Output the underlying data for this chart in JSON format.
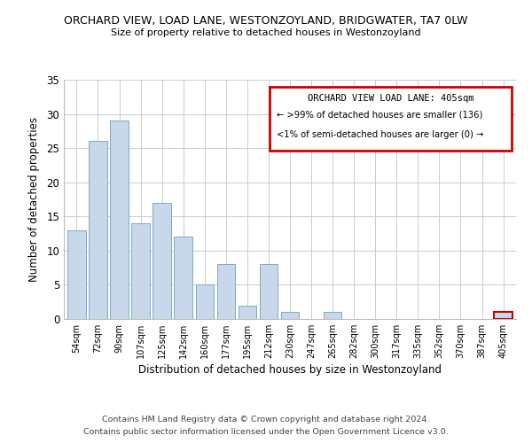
{
  "title": "ORCHARD VIEW, LOAD LANE, WESTONZOYLAND, BRIDGWATER, TA7 0LW",
  "subtitle": "Size of property relative to detached houses in Westonzoyland",
  "xlabel": "Distribution of detached houses by size in Westonzoyland",
  "ylabel": "Number of detached properties",
  "bin_labels": [
    "54sqm",
    "72sqm",
    "90sqm",
    "107sqm",
    "125sqm",
    "142sqm",
    "160sqm",
    "177sqm",
    "195sqm",
    "212sqm",
    "230sqm",
    "247sqm",
    "265sqm",
    "282sqm",
    "300sqm",
    "317sqm",
    "335sqm",
    "352sqm",
    "370sqm",
    "387sqm",
    "405sqm"
  ],
  "bar_heights": [
    13,
    26,
    29,
    14,
    17,
    12,
    5,
    8,
    2,
    8,
    1,
    0,
    1,
    0,
    0,
    0,
    0,
    0,
    0,
    0,
    1
  ],
  "bar_color": "#c8d8ea",
  "bar_edge_color": "#7aaac8",
  "highlight_bin": 20,
  "highlight_edge_color": "#cc0000",
  "ylim": [
    0,
    35
  ],
  "yticks": [
    0,
    5,
    10,
    15,
    20,
    25,
    30,
    35
  ],
  "legend_title": "ORCHARD VIEW LOAD LANE: 405sqm",
  "legend_line1": "← >99% of detached houses are smaller (136)",
  "legend_line2": "<1% of semi-detached houses are larger (0) →",
  "legend_box_color": "#ffffff",
  "legend_border_color": "#cc0000",
  "footer_line1": "Contains HM Land Registry data © Crown copyright and database right 2024.",
  "footer_line2": "Contains public sector information licensed under the Open Government Licence v3.0.",
  "background_color": "#ffffff",
  "grid_color": "#cccccc"
}
